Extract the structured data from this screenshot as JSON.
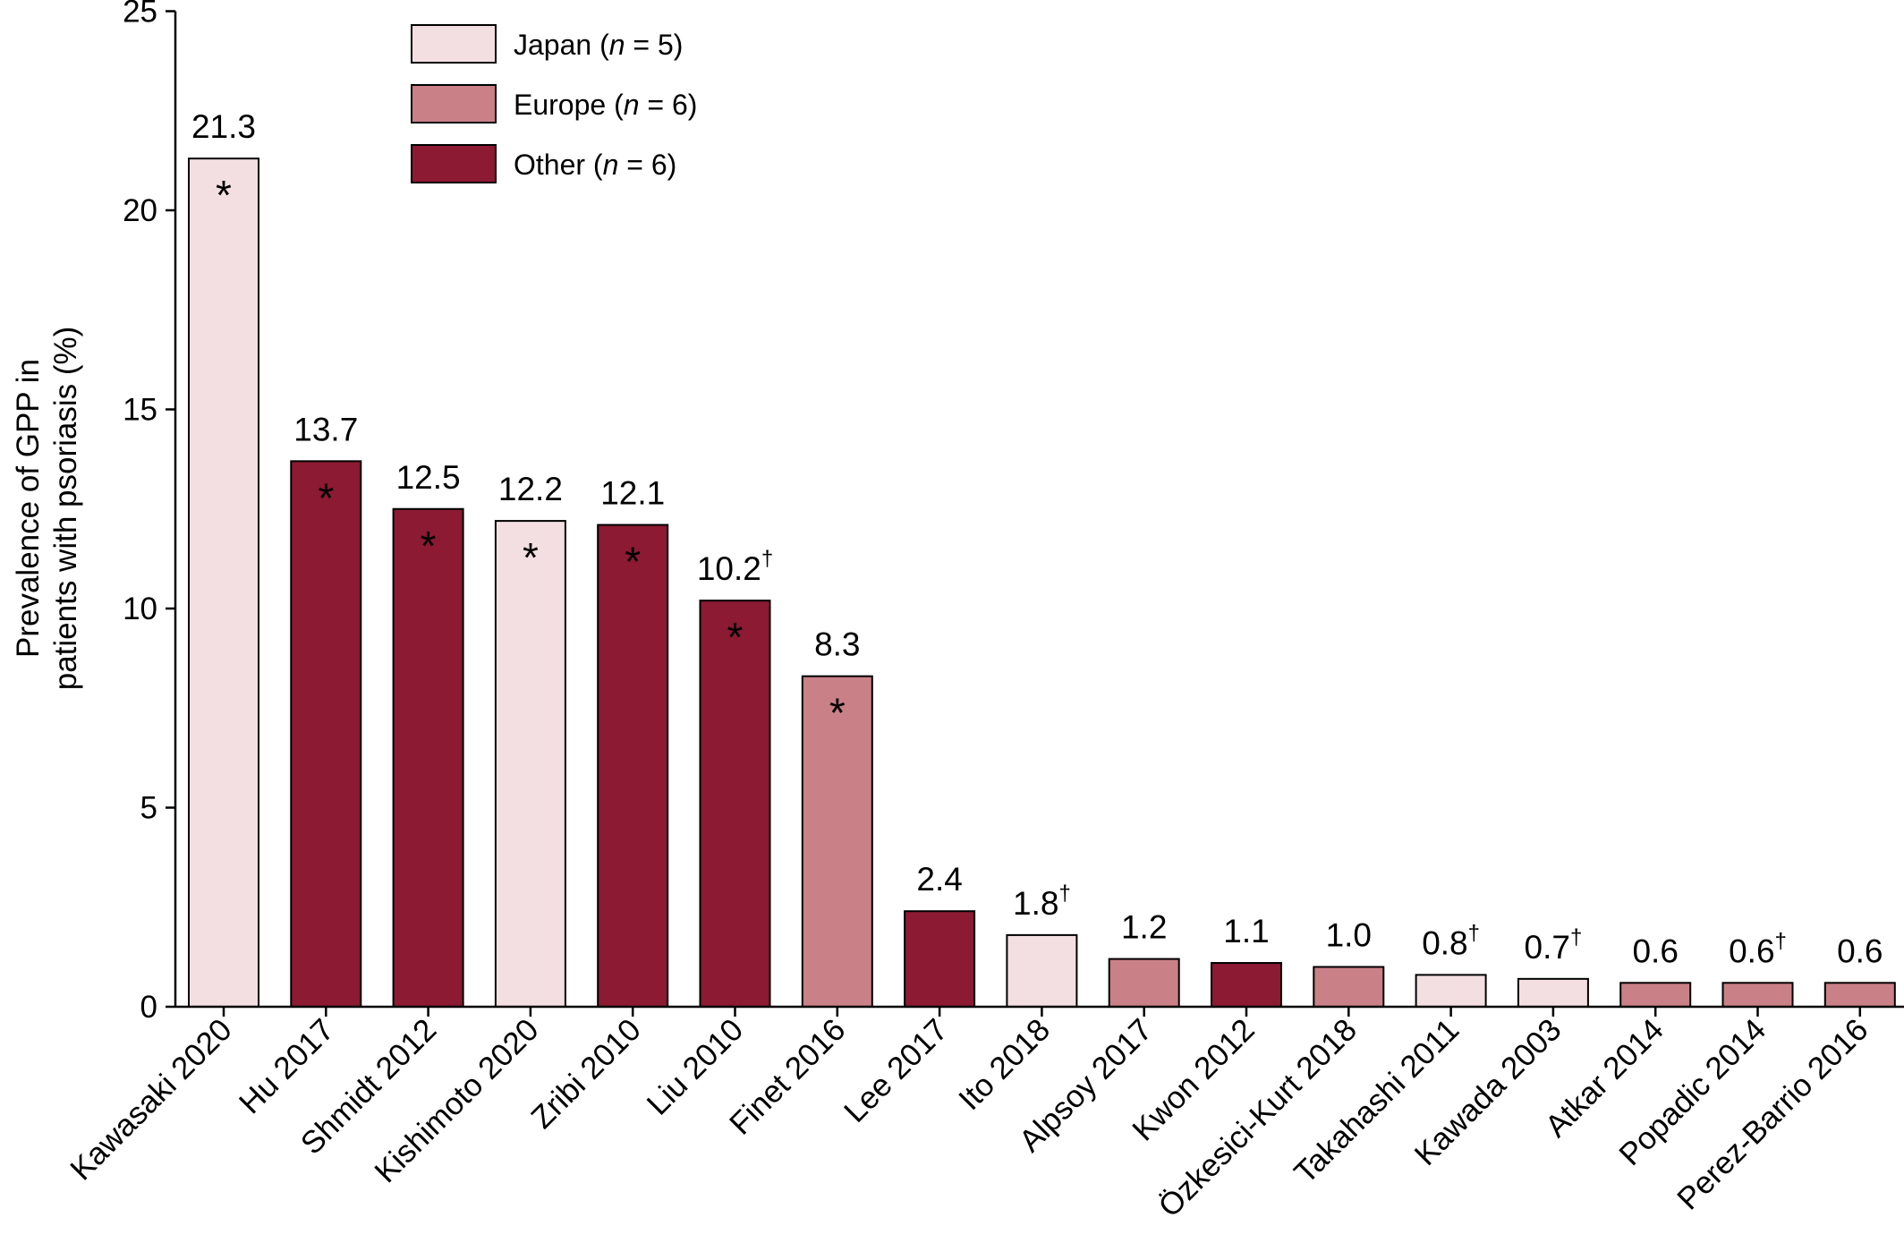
{
  "chart_data": {
    "type": "bar",
    "ylabel_lines": [
      "Prevalence of GPP in",
      "patients with psoriasis (%)"
    ],
    "ylim": [
      0,
      25
    ],
    "yticks": [
      0,
      5,
      10,
      15,
      20,
      25
    ],
    "grid": false,
    "legend_placement": "top-left",
    "legend": [
      {
        "key": "Japan",
        "text": "Japan (",
        "n_letter": "n",
        "count": " = 5)",
        "color": "#f3dfe1"
      },
      {
        "key": "Europe",
        "text": "Europe (",
        "n_letter": "n",
        "count": " = 6)",
        "color": "#c98087"
      },
      {
        "key": "Other",
        "text": "Other (",
        "n_letter": "n",
        "count": " = 6)",
        "color": "#8b1a32"
      }
    ],
    "bars": [
      {
        "category": "Kawasaki 2020",
        "value": 21.3,
        "label": "21.3",
        "dagger": "",
        "asterisk": "*",
        "group": "Japan"
      },
      {
        "category": "Hu 2017",
        "value": 13.7,
        "label": "13.7",
        "dagger": "",
        "asterisk": "*",
        "group": "Other"
      },
      {
        "category": "Shmidt 2012",
        "value": 12.5,
        "label": "12.5",
        "dagger": "",
        "asterisk": "*",
        "group": "Other"
      },
      {
        "category": "Kishimoto 2020",
        "value": 12.2,
        "label": "12.2",
        "dagger": "",
        "asterisk": "*",
        "group": "Japan"
      },
      {
        "category": "Zribi 2010",
        "value": 12.1,
        "label": "12.1",
        "dagger": "",
        "asterisk": "*",
        "group": "Other"
      },
      {
        "category": "Liu 2010",
        "value": 10.2,
        "label": "10.2",
        "dagger": "†",
        "asterisk": "*",
        "group": "Other"
      },
      {
        "category": "Finet 2016",
        "value": 8.3,
        "label": "8.3",
        "dagger": "",
        "asterisk": "*",
        "group": "Europe"
      },
      {
        "category": "Lee 2017",
        "value": 2.4,
        "label": "2.4",
        "dagger": "",
        "asterisk": "",
        "group": "Other"
      },
      {
        "category": "Ito 2018",
        "value": 1.8,
        "label": "1.8",
        "dagger": "†",
        "asterisk": "",
        "group": "Japan"
      },
      {
        "category": "Alpsoy 2017",
        "value": 1.2,
        "label": "1.2",
        "dagger": "",
        "asterisk": "",
        "group": "Europe"
      },
      {
        "category": "Kwon 2012",
        "value": 1.1,
        "label": "1.1",
        "dagger": "",
        "asterisk": "",
        "group": "Other"
      },
      {
        "category": "Özkesici-Kurt 2018",
        "value": 1.0,
        "label": "1.0",
        "dagger": "",
        "asterisk": "",
        "group": "Europe"
      },
      {
        "category": "Takahashi 2011",
        "value": 0.8,
        "label": "0.8",
        "dagger": "†",
        "asterisk": "",
        "group": "Japan"
      },
      {
        "category": "Kawada 2003",
        "value": 0.7,
        "label": "0.7",
        "dagger": "†",
        "asterisk": "",
        "group": "Japan"
      },
      {
        "category": "Atkar 2014",
        "value": 0.6,
        "label": "0.6",
        "dagger": "",
        "asterisk": "",
        "group": "Europe"
      },
      {
        "category": "Popadic 2014",
        "value": 0.6,
        "label": "0.6",
        "dagger": "†",
        "asterisk": "",
        "group": "Europe"
      },
      {
        "category": "Perez-Barrio 2016",
        "value": 0.6,
        "label": "0.6",
        "dagger": "",
        "asterisk": "",
        "group": "Europe"
      }
    ]
  }
}
